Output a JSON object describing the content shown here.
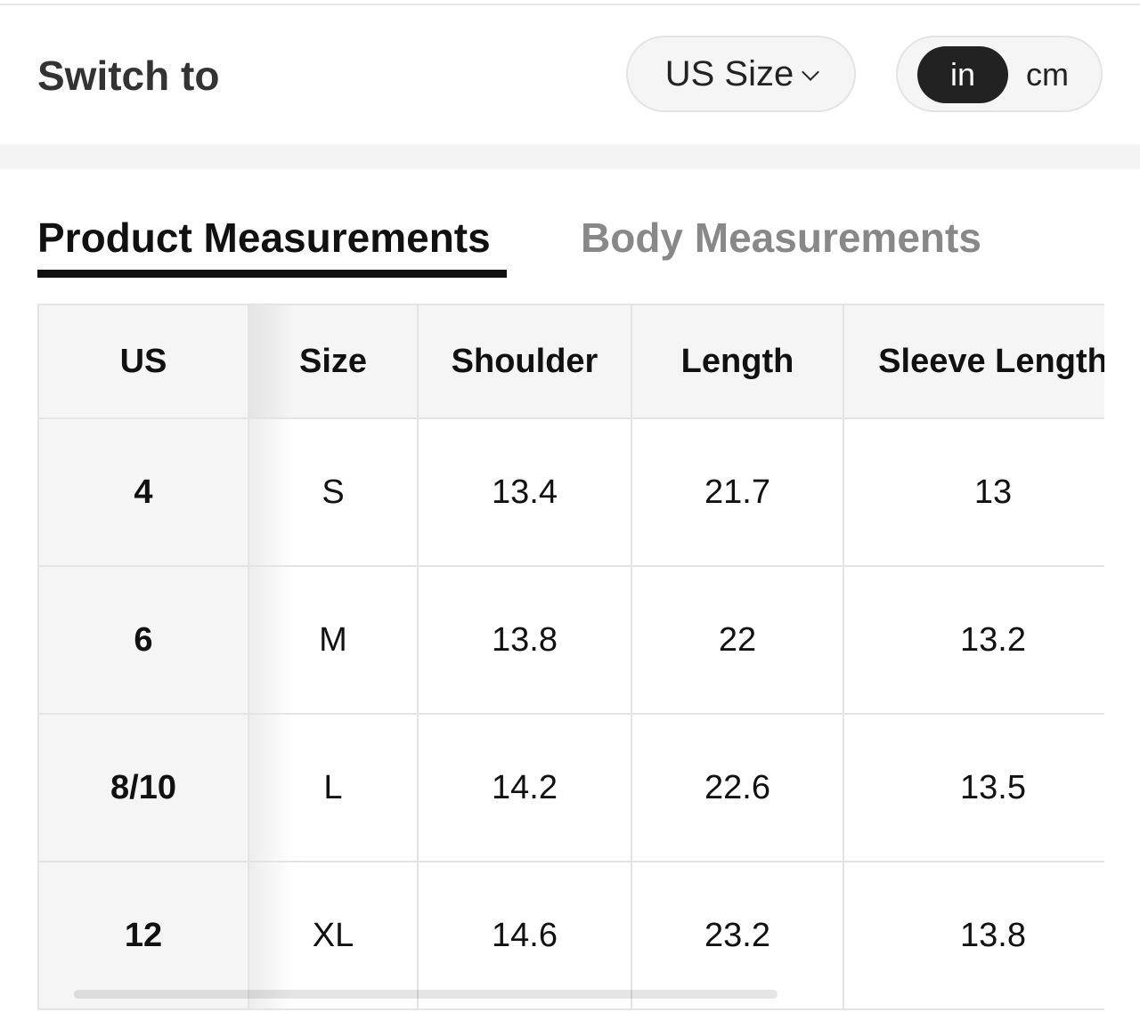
{
  "header": {
    "switch_label": "Switch to",
    "size_system": "US Size",
    "units": {
      "options": [
        "in",
        "cm"
      ],
      "selected": "in"
    }
  },
  "tabs": [
    {
      "label": "Product Measurements",
      "active": true
    },
    {
      "label": "Body Measurements",
      "active": false
    }
  ],
  "table": {
    "columns": [
      "US",
      "Size",
      "Shoulder",
      "Length",
      "Sleeve Length"
    ],
    "rows": [
      [
        "4",
        "S",
        "13.4",
        "21.7",
        "13"
      ],
      [
        "6",
        "M",
        "13.8",
        "22",
        "13.2"
      ],
      [
        "8/10",
        "L",
        "14.2",
        "22.6",
        "13.5"
      ],
      [
        "12",
        "XL",
        "14.6",
        "23.2",
        "13.8"
      ]
    ]
  }
}
